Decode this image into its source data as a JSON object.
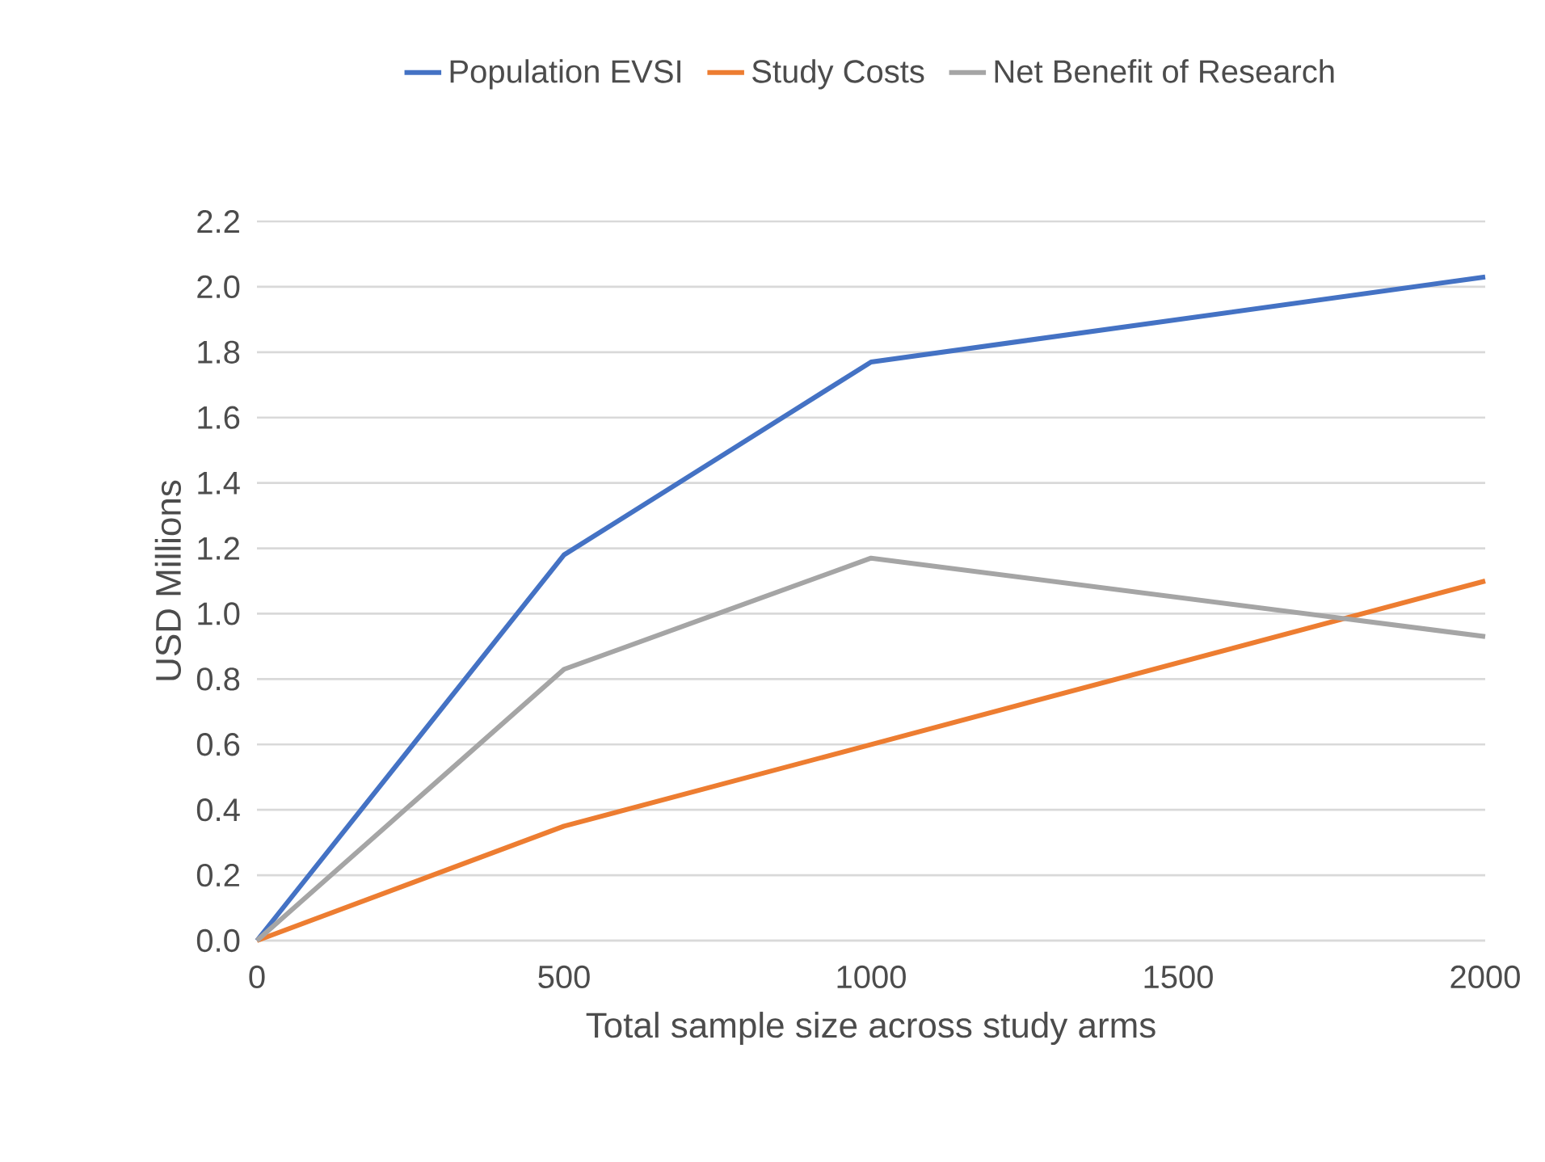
{
  "chart_data": {
    "type": "line",
    "xlabel": "Total sample size across study arms",
    "ylabel": "USD Millions",
    "x": [
      0,
      500,
      1000,
      2000
    ],
    "series": [
      {
        "name": "Population EVSI",
        "color": "#4472c4",
        "values": [
          0,
          1.18,
          1.77,
          2.03
        ]
      },
      {
        "name": "Study Costs",
        "color": "#ed7d31",
        "values": [
          0,
          0.35,
          0.6,
          1.1
        ]
      },
      {
        "name": "Net Benefit of Research",
        "color": "#a5a5a5",
        "values": [
          0,
          0.83,
          1.17,
          0.93
        ]
      }
    ],
    "xlim": [
      0,
      2000
    ],
    "xticks": [
      0,
      500,
      1000,
      1500,
      2000
    ],
    "ylim": [
      0,
      2.2
    ],
    "yticks": [
      {
        "value": 0,
        "label": "0.0"
      },
      {
        "value": 0.2,
        "label": "0.2"
      },
      {
        "value": 0.4,
        "label": "0.4"
      },
      {
        "value": 0.6,
        "label": "0.6"
      },
      {
        "value": 0.8,
        "label": "0.8"
      },
      {
        "value": 1.0,
        "label": "1.0"
      },
      {
        "value": 1.2,
        "label": "1.2"
      },
      {
        "value": 1.4,
        "label": "1.4"
      },
      {
        "value": 1.6,
        "label": "1.6"
      },
      {
        "value": 1.8,
        "label": "1.8"
      },
      {
        "value": 2.0,
        "label": "2.0"
      },
      {
        "value": 2.2,
        "label": "2.2"
      }
    ],
    "grid": "y",
    "legend": "top",
    "marker": "none",
    "line_style": "solid"
  }
}
